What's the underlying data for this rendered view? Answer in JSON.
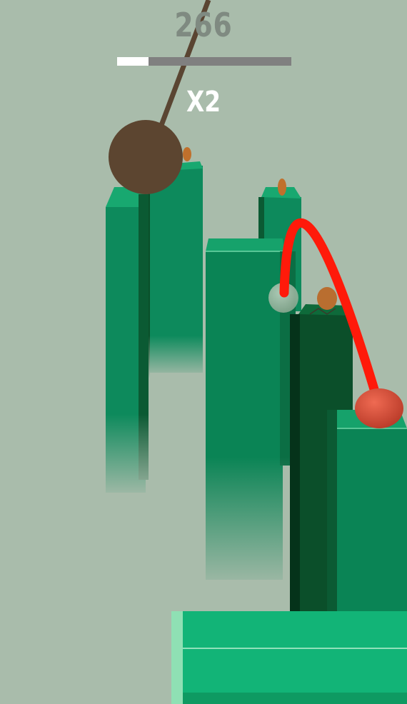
{
  "hud": {
    "score": "266",
    "multiplier": "X2",
    "level_progress": 0.18
  },
  "colors": {
    "background": "#a9bcab",
    "pillar_front": "#0d8a5c",
    "pillar_top": "#18a870",
    "pillar_dark": "#0b4f2a",
    "wrecking_ball": "#5c4530",
    "rope": "#5a4532",
    "player_ball": "#d94b35",
    "trajectory": "#ff1a0a",
    "coin": "#c0702c",
    "progress_bg": "#808080",
    "progress_fill": "#ffffff",
    "score_text": "#7f8a81",
    "multiplier_text": "#ffffff"
  },
  "icons": {
    "player": "red-ball-icon",
    "hazard": "wrecking-ball-icon",
    "collectible": "coin-icon"
  }
}
